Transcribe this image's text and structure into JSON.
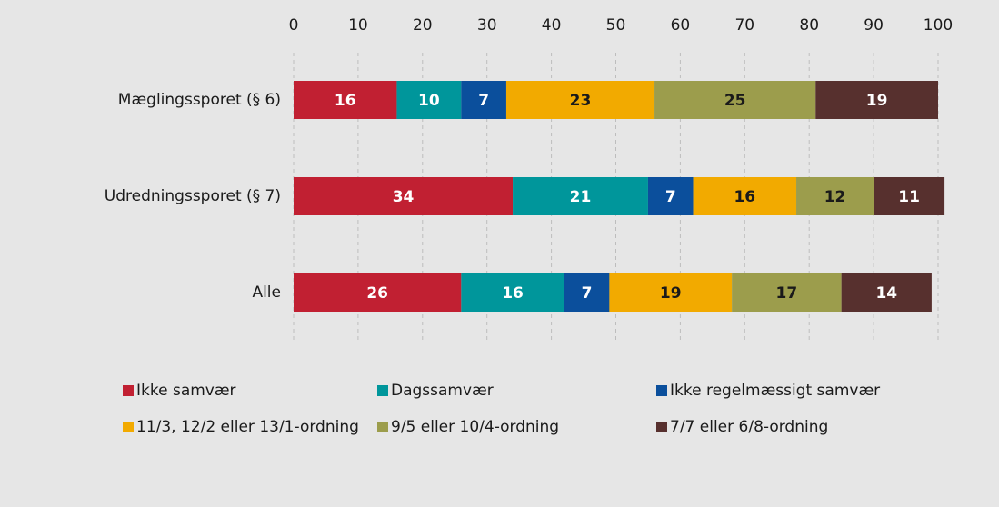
{
  "chart_data": {
    "type": "stacked-barh",
    "categories": [
      "Mæglingssporet (§ 6)",
      "Udredningssporet (§ 7)",
      "Alle"
    ],
    "series": [
      {
        "name": "Ikke samvær",
        "color": "#c12032",
        "values": [
          16,
          34,
          26
        ]
      },
      {
        "name": "Dagssamvær",
        "color": "#00969b",
        "values": [
          10,
          21,
          16
        ]
      },
      {
        "name": "Ikke regelmæssigt samvær",
        "color": "#0b4f9c",
        "values": [
          7,
          7,
          7
        ]
      },
      {
        "name": "11/3, 12/2 eller 13/1-ordning",
        "color": "#f2aa00",
        "values": [
          23,
          16,
          19
        ]
      },
      {
        "name": "9/5 eller 10/4-ordning",
        "color": "#9c9d4c",
        "values": [
          25,
          12,
          17
        ]
      },
      {
        "name": "7/7 eller 6/8-ordning",
        "color": "#57302e",
        "values": [
          19,
          11,
          14
        ]
      }
    ],
    "xlim": [
      0,
      100
    ],
    "xticks": [
      0,
      10,
      20,
      30,
      40,
      50,
      60,
      70,
      80,
      90,
      100
    ],
    "grid": true
  }
}
